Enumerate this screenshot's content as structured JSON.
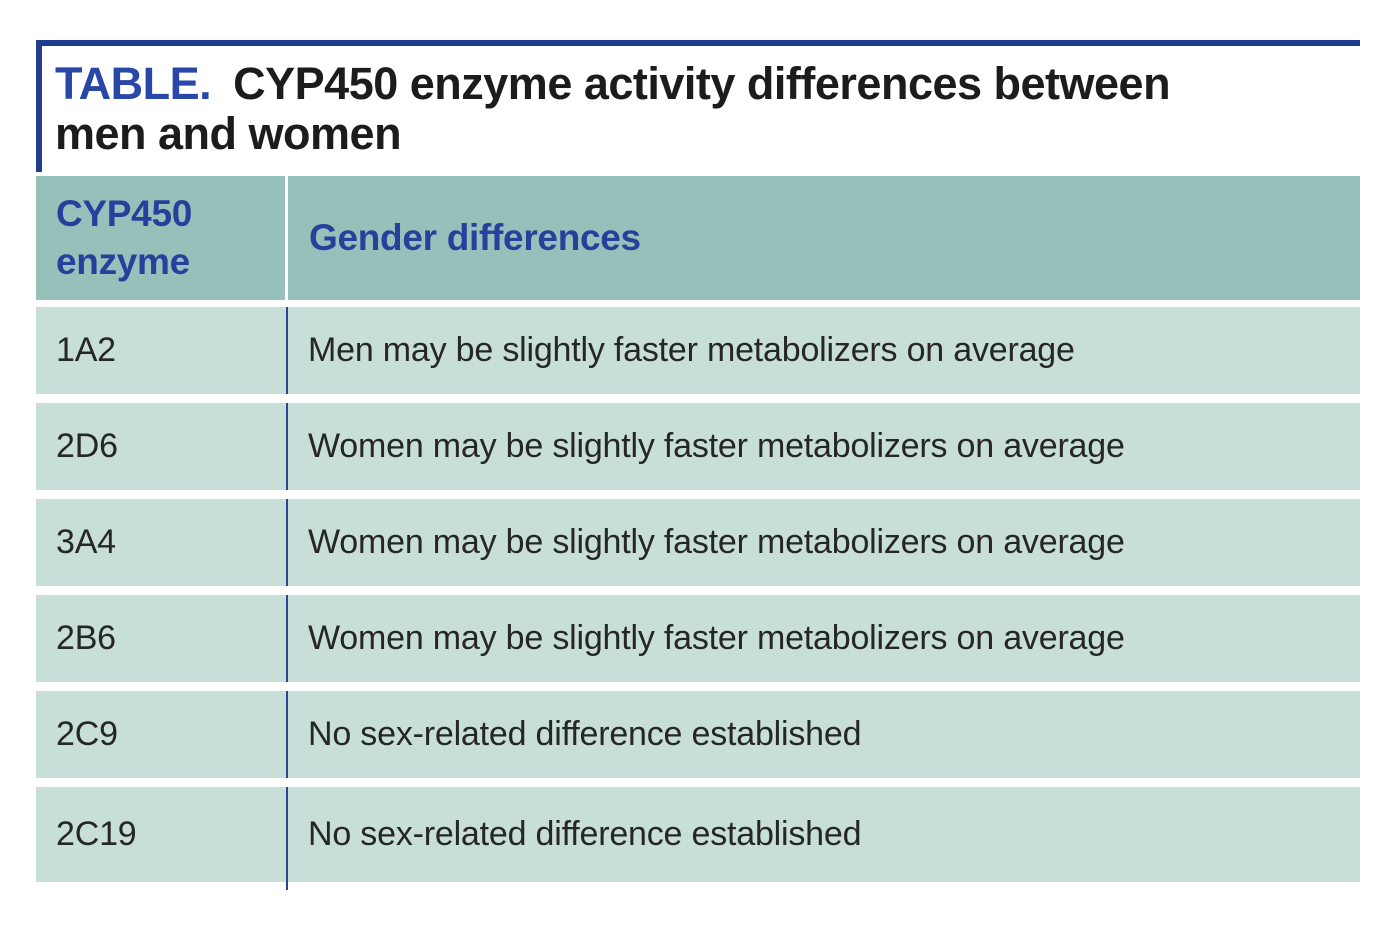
{
  "title": {
    "prefix": "TABLE.",
    "line1": "CYP450 enzyme activity differences between",
    "line2": "men and women"
  },
  "table": {
    "headers": {
      "enzyme": "CYP450 enzyme",
      "differences": "Gender differences"
    },
    "rows": [
      {
        "enzyme": "1A2",
        "difference": "Men may be slightly faster metabolizers on average"
      },
      {
        "enzyme": "2D6",
        "difference": "Women may be slightly faster metabolizers on average"
      },
      {
        "enzyme": "3A4",
        "difference": "Women may be slightly faster metabolizers on average"
      },
      {
        "enzyme": "2B6",
        "difference": "Women may be slightly faster metabolizers on average"
      },
      {
        "enzyme": "2C9",
        "difference": "No sex-related difference established"
      },
      {
        "enzyme": "2C19",
        "difference": "No sex-related difference established"
      }
    ]
  },
  "colors": {
    "accent_navy": "#203c8e",
    "title_blue": "#2847a8",
    "header_text_blue": "#26419c",
    "header_bg": "#95c1ba",
    "row_bg": "#c8ded9",
    "body_text": "#262626",
    "page_bg": "#ffffff"
  }
}
